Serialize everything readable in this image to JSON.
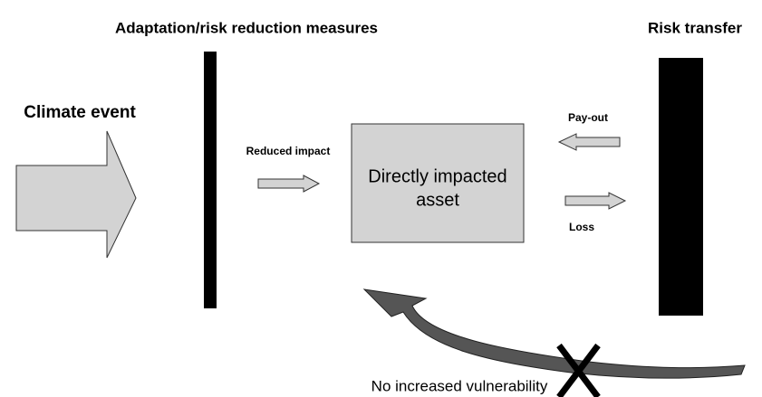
{
  "header": {
    "left_title": "Adaptation/risk reduction measures",
    "right_title": "Risk transfer"
  },
  "nodes": [
    {
      "label": "Climate event"
    },
    {
      "label": "Reduced impact"
    },
    {
      "label_lines": [
        "Directly impacted",
        "asset"
      ]
    },
    {
      "label": "Pay-out"
    },
    {
      "label": "Loss"
    }
  ],
  "footer": {
    "label": "No increased vulnerability"
  }
}
